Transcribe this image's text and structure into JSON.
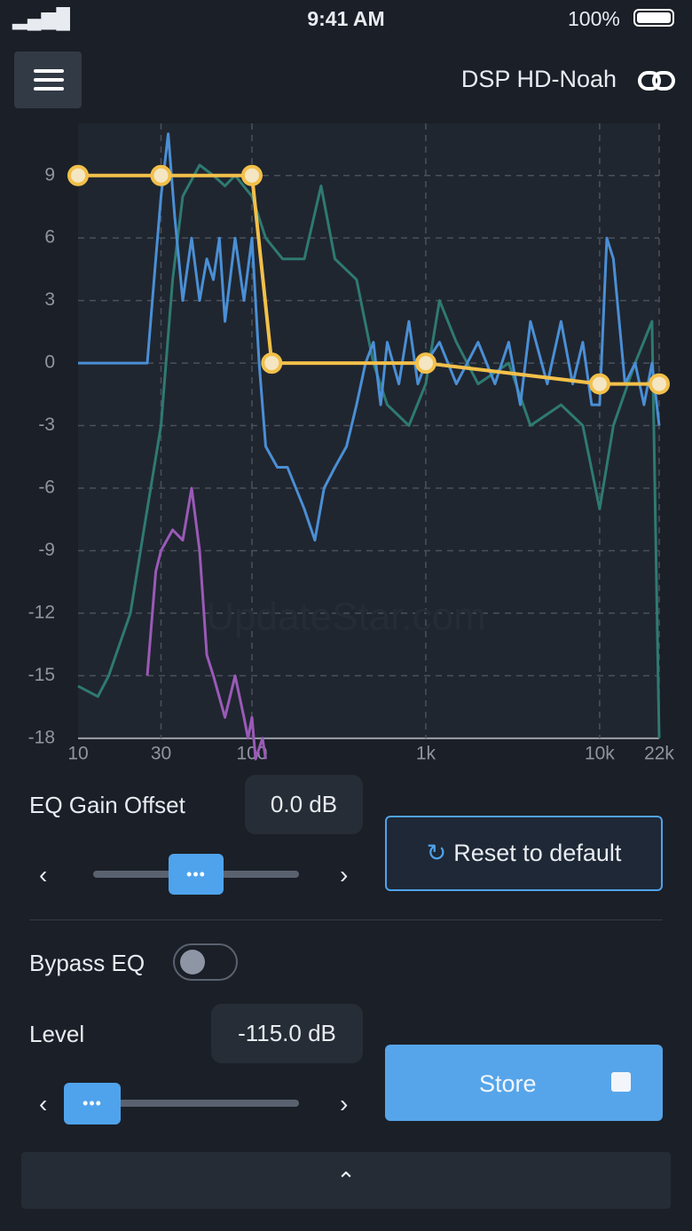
{
  "status_bar": {
    "time": "9:41 AM",
    "battery": "100%"
  },
  "header": {
    "title": "DSP HD-Noah"
  },
  "chart_data": {
    "type": "line",
    "log_x": true,
    "grid": true,
    "xlim": [
      10,
      22000
    ],
    "ylim": [
      -19.2,
      11.5
    ],
    "xticks": [
      10,
      30,
      100,
      {
        "value": 1000,
        "label": "1k"
      },
      {
        "value": 10000,
        "label": "10k"
      },
      {
        "value": 22000,
        "label": "22k"
      }
    ],
    "yticks": [
      9,
      6,
      3,
      0,
      -3,
      -6,
      -9,
      -12,
      -15,
      -18
    ],
    "watermark": "UpdateStar.com",
    "series": [
      {
        "color": "#2e7a72",
        "x": [
          10,
          13,
          15,
          20,
          25,
          30,
          35,
          40,
          50,
          60,
          70,
          80,
          100,
          120,
          150,
          200,
          250,
          300,
          400,
          500,
          600,
          800,
          1000,
          1200,
          1500,
          2000,
          3000,
          4000,
          6000,
          8000,
          10000,
          12000,
          16000,
          20000,
          22000
        ],
        "values": [
          -15.5,
          -16,
          -15,
          -12,
          -7,
          -3,
          4,
          8,
          9.5,
          9,
          8.5,
          9,
          8,
          6,
          5,
          5,
          8.5,
          5,
          4,
          0,
          -2,
          -3,
          -1,
          3,
          1,
          -1,
          0,
          -3,
          -2,
          -3,
          -7,
          -3,
          0,
          2,
          -18
        ]
      },
      {
        "color": "#4a8fd6",
        "x": [
          10,
          15,
          20,
          25,
          28,
          30,
          33,
          36,
          40,
          45,
          50,
          55,
          60,
          65,
          70,
          80,
          90,
          100,
          110,
          120,
          140,
          160,
          200,
          230,
          260,
          300,
          350,
          400,
          450,
          500,
          550,
          600,
          700,
          800,
          900,
          1000,
          1200,
          1500,
          2000,
          2500,
          3000,
          3500,
          4000,
          5000,
          6000,
          7000,
          8000,
          9000,
          10000,
          11000,
          12000,
          14000,
          16000,
          18000,
          20000,
          22000
        ],
        "values": [
          0,
          0,
          0,
          0,
          5,
          8,
          11,
          7,
          3,
          6,
          3,
          5,
          4,
          6,
          2,
          6,
          3,
          6,
          0,
          -4,
          -5,
          -5,
          -7,
          -8.5,
          -6,
          -5,
          -4,
          -2,
          0,
          1,
          -2,
          1,
          -1,
          2,
          -1,
          0,
          1,
          -1,
          1,
          -1,
          1,
          -2,
          2,
          -1,
          2,
          -1,
          1,
          -2,
          -2,
          6,
          5,
          -1,
          0,
          -2,
          0,
          -3
        ]
      },
      {
        "color": "#9a5ab8",
        "x": [
          25,
          28,
          30,
          35,
          40,
          45,
          50,
          55,
          60,
          70,
          80,
          90,
          95,
          100,
          105,
          115,
          120
        ],
        "values": [
          -15,
          -10,
          -9,
          -8,
          -8.5,
          -6,
          -9,
          -14,
          -15,
          -17,
          -15,
          -17,
          -18,
          -17,
          -19,
          -18,
          -19
        ]
      },
      {
        "color": "#f2c04a",
        "points": true,
        "x": [
          10,
          30,
          100,
          130,
          1000,
          10000,
          22000
        ],
        "values": [
          9,
          9,
          9,
          0,
          0,
          -1,
          -1
        ]
      }
    ]
  },
  "controls": {
    "eq_gain_offset": {
      "label": "EQ Gain Offset",
      "value": "0.0 dB"
    },
    "reset_button": "Reset to default",
    "bypass": {
      "label": "Bypass EQ"
    },
    "level": {
      "label": "Level",
      "value": "-115.0 dB"
    },
    "store_button": "Store"
  }
}
